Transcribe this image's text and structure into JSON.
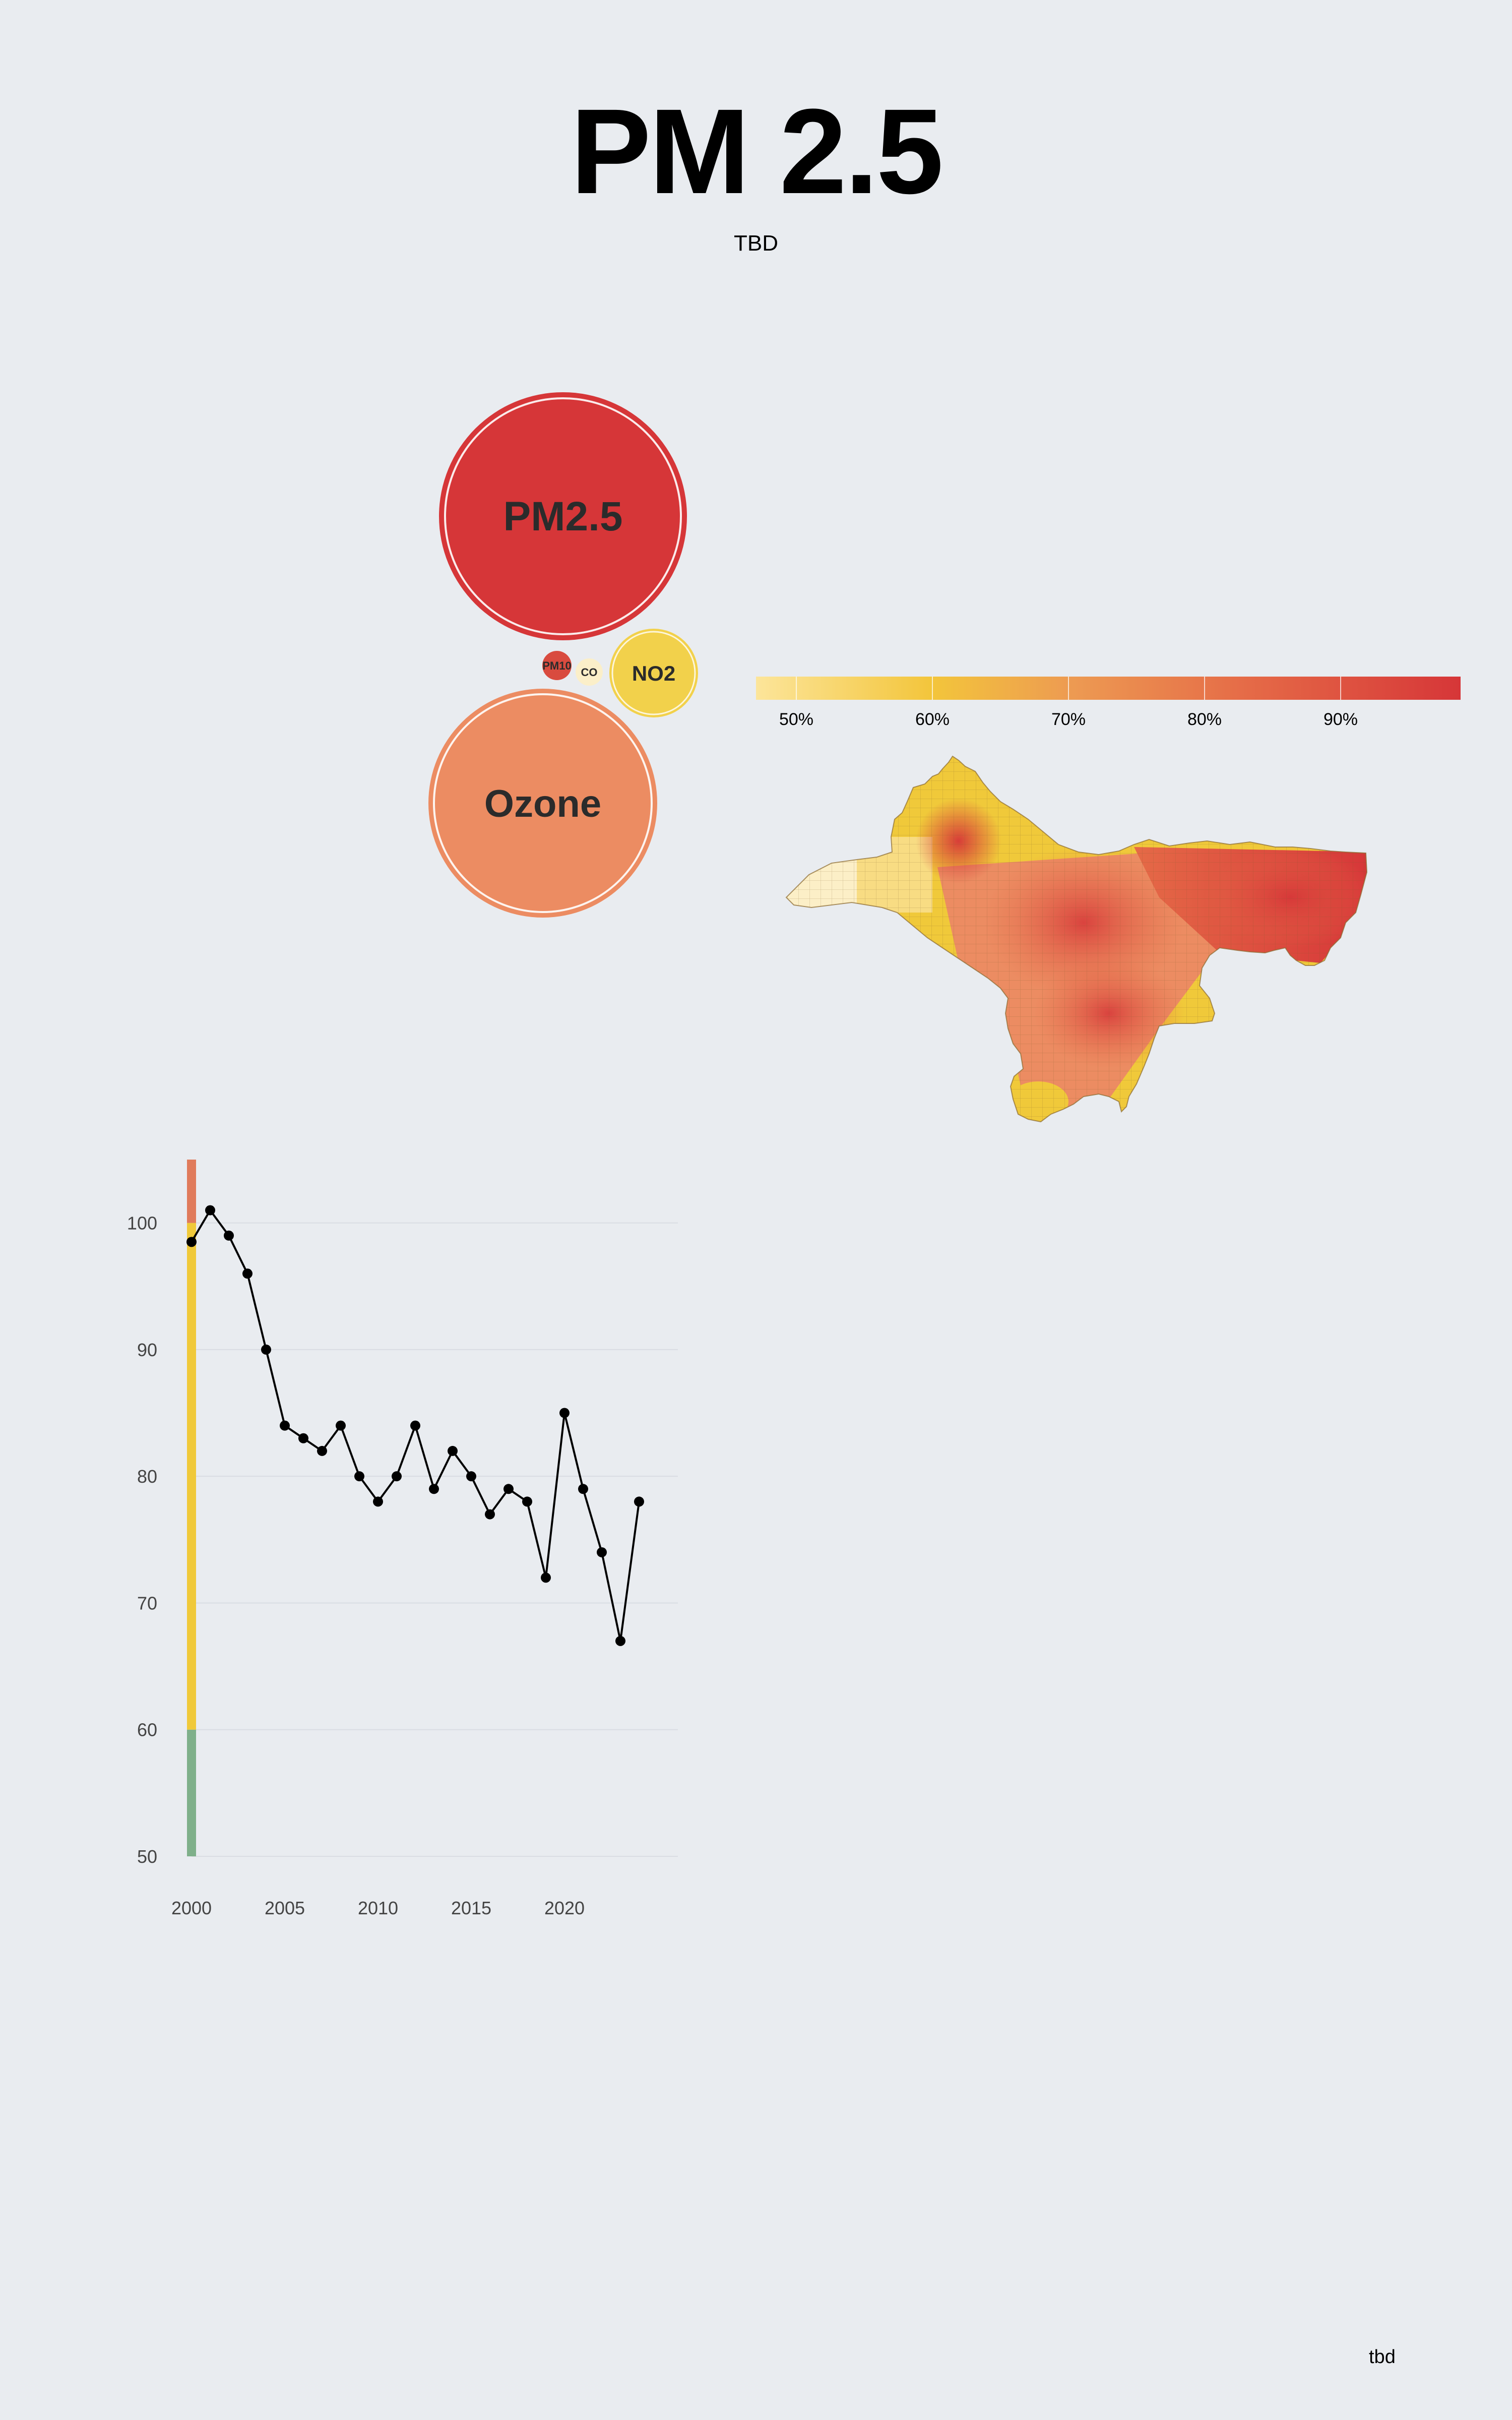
{
  "header": {
    "title": "PM 2.5",
    "subtitle": "TBD"
  },
  "footer": {
    "text": "tbd"
  },
  "colors": {
    "background": "#e9ecf0",
    "pm25": "#d63638",
    "ozone": "#ec8c62",
    "no2": "#f2d14b",
    "pm10": "#d94b3f",
    "co": "#fbefc9",
    "band_high": "#e07b5b",
    "band_mid": "#f0c93a",
    "band_low": "#7fb08a"
  },
  "pollutants": [
    {
      "name": "PM2.5",
      "color": "#d63638"
    },
    {
      "name": "NO2",
      "color": "#f2d14b"
    },
    {
      "name": "PM10",
      "color": "#d94b3f"
    },
    {
      "name": "CO",
      "color": "#fbefc9"
    },
    {
      "name": "Ozone",
      "color": "#ec8c62"
    }
  ],
  "map_legend": {
    "ticks": [
      "50%",
      "60%",
      "70%",
      "80%",
      "90%"
    ],
    "colors": [
      "#fce59a",
      "#f3c53b",
      "#ed9a52",
      "#e56a47",
      "#d63638"
    ]
  },
  "chart_data": {
    "type": "line",
    "x": [
      2000,
      2001,
      2002,
      2003,
      2004,
      2005,
      2006,
      2007,
      2008,
      2009,
      2010,
      2011,
      2012,
      2013,
      2014,
      2015,
      2016,
      2017,
      2018,
      2019,
      2020,
      2021,
      2022,
      2023,
      2024
    ],
    "y": [
      98.5,
      101,
      99,
      96,
      90,
      84,
      83,
      82,
      84,
      80,
      78,
      80,
      84,
      79,
      82,
      80,
      77,
      79,
      78,
      72,
      85,
      79,
      74,
      67,
      78
    ],
    "xticks": [
      "2000",
      "2005",
      "2010",
      "2015",
      "2020"
    ],
    "yticks": [
      "50",
      "60",
      "70",
      "80",
      "90",
      "100"
    ],
    "xlim": [
      2000,
      2025
    ],
    "ylim": [
      50,
      105
    ],
    "bands": [
      {
        "from": 50,
        "to": 60,
        "color": "#7fb08a"
      },
      {
        "from": 60,
        "to": 100,
        "color": "#f0c93a"
      },
      {
        "from": 100,
        "to": 105,
        "color": "#e07b5b"
      }
    ],
    "grid": true
  }
}
